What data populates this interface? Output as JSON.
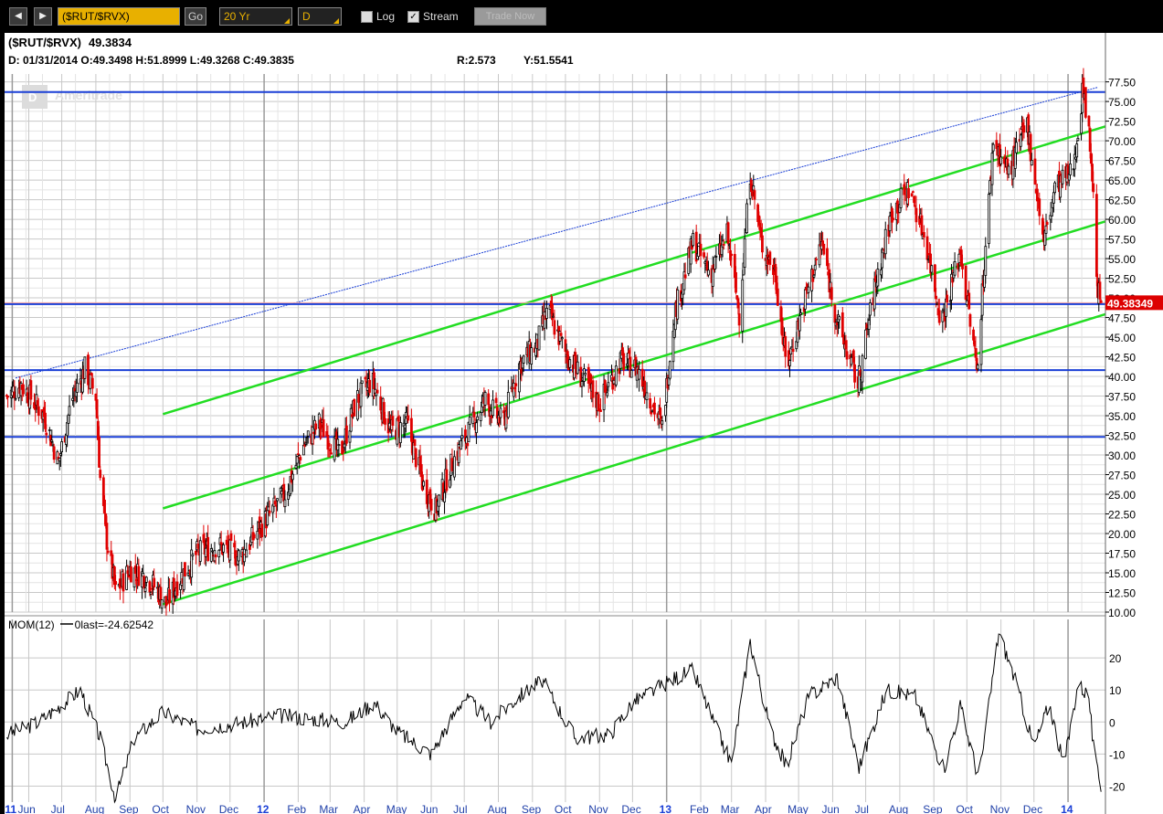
{
  "toolbar": {
    "back_label": "◀",
    "forward_label": "▶",
    "symbol_value": "($RUT/$RVX)",
    "go_label": "Go",
    "period_value": "20 Yr",
    "interval_value": "D",
    "log_label": "Log",
    "stream_label": "Stream",
    "trade_now_label": "Trade Now",
    "log_checked": false,
    "stream_checked": true
  },
  "header": {
    "title": "($RUT/$RVX)",
    "last_value": "49.3834",
    "ohlc_line": "D: 01/31/2014 O:49.3498 H:51.8999 L:49.3268 C:49.3835",
    "r_text": "R:2.573",
    "y_text": "Y:51.5541"
  },
  "watermark": "Ameritrade",
  "colors": {
    "up": "#000000",
    "down": "#e00000",
    "support_resistance": "#1a3fd6",
    "channel": "#22dd22",
    "price_label_bg": "#dd0000",
    "plot_bg": "#ffffff",
    "grid": "#c8c8c8"
  },
  "chart_data": [
    {
      "type": "candlestick",
      "ylim": [
        10,
        78.5
      ],
      "y_ticks": [
        "77.50",
        "75.00",
        "72.50",
        "70.00",
        "67.50",
        "65.00",
        "62.50",
        "60.00",
        "57.50",
        "55.00",
        "52.50",
        "50.00",
        "47.50",
        "45.00",
        "42.50",
        "40.00",
        "37.50",
        "35.00",
        "32.50",
        "30.00",
        "27.50",
        "25.00",
        "22.50",
        "20.00",
        "17.50",
        "15.00",
        "12.50",
        "10.00"
      ],
      "current_price_label": "49.38349",
      "current_price": 49.3835,
      "horizontal_lines": [
        76.2,
        49.2,
        40.8,
        32.3
      ],
      "channel_lines": [
        {
          "from": [
            "2011-10-01",
            35.2
          ],
          "to": [
            "2014-02-15",
            72.3
          ]
        },
        {
          "from": [
            "2011-10-01",
            23.2
          ],
          "to": [
            "2014-02-15",
            60.2
          ]
        },
        {
          "from": [
            "2011-10-01",
            11.0
          ],
          "to": [
            "2014-02-15",
            48.4
          ]
        }
      ],
      "trend_line": {
        "from": [
          "2011-05-20",
          39.8
        ],
        "to": [
          "2014-01-28",
          76.8
        ]
      },
      "close_path": [
        [
          "2011-05-12",
          37.5
        ],
        [
          "2011-05-25",
          39.0
        ],
        [
          "2011-06-15",
          35.0
        ],
        [
          "2011-06-28",
          29.0
        ],
        [
          "2011-07-10",
          37.0
        ],
        [
          "2011-07-22",
          41.0
        ],
        [
          "2011-08-01",
          37.5
        ],
        [
          "2011-08-05",
          27.0
        ],
        [
          "2011-08-10",
          20.0
        ],
        [
          "2011-08-19",
          12.5
        ],
        [
          "2011-09-01",
          15.5
        ],
        [
          "2011-09-15",
          14.5
        ],
        [
          "2011-09-25",
          13.0
        ],
        [
          "2011-10-04",
          11.0
        ],
        [
          "2011-10-15",
          14.0
        ],
        [
          "2011-11-01",
          17.5
        ],
        [
          "2011-11-20",
          18.5
        ],
        [
          "2011-12-10",
          17.0
        ],
        [
          "2012-01-01",
          21.5
        ],
        [
          "2012-01-20",
          25.0
        ],
        [
          "2012-02-05",
          31.0
        ],
        [
          "2012-02-20",
          34.0
        ],
        [
          "2012-03-10",
          30.0
        ],
        [
          "2012-03-25",
          37.0
        ],
        [
          "2012-04-08",
          39.5
        ],
        [
          "2012-04-25",
          33.0
        ],
        [
          "2012-05-10",
          34.0
        ],
        [
          "2012-05-25",
          26.0
        ],
        [
          "2012-06-05",
          23.0
        ],
        [
          "2012-06-20",
          29.0
        ],
        [
          "2012-07-05",
          33.0
        ],
        [
          "2012-07-20",
          37.0
        ],
        [
          "2012-08-05",
          34.0
        ],
        [
          "2012-08-20",
          41.5
        ],
        [
          "2012-09-05",
          44.0
        ],
        [
          "2012-09-15",
          48.5
        ],
        [
          "2012-10-01",
          43.0
        ],
        [
          "2012-10-15",
          40.0
        ],
        [
          "2012-11-01",
          36.5
        ],
        [
          "2012-11-20",
          42.0
        ],
        [
          "2012-12-05",
          41.0
        ],
        [
          "2012-12-28",
          33.5
        ],
        [
          "2013-01-08",
          48.0
        ],
        [
          "2013-01-25",
          57.0
        ],
        [
          "2013-02-10",
          53.0
        ],
        [
          "2013-02-25",
          58.0
        ],
        [
          "2013-03-08",
          48.0
        ],
        [
          "2013-03-18",
          66.0
        ],
        [
          "2013-03-28",
          57.0
        ],
        [
          "2013-04-10",
          53.0
        ],
        [
          "2013-04-20",
          41.0
        ],
        [
          "2013-05-05",
          49.0
        ],
        [
          "2013-05-22",
          57.0
        ],
        [
          "2013-06-05",
          47.0
        ],
        [
          "2013-06-24",
          39.0
        ],
        [
          "2013-07-10",
          52.0
        ],
        [
          "2013-07-25",
          61.0
        ],
        [
          "2013-08-10",
          64.0
        ],
        [
          "2013-08-25",
          57.0
        ],
        [
          "2013-09-08",
          47.0
        ],
        [
          "2013-09-25",
          56.0
        ],
        [
          "2013-10-10",
          41.0
        ],
        [
          "2013-10-25",
          70.0
        ],
        [
          "2013-11-08",
          66.0
        ],
        [
          "2013-11-25",
          72.0
        ],
        [
          "2013-12-10",
          57.0
        ],
        [
          "2013-12-20",
          64.0
        ],
        [
          "2014-01-05",
          66.0
        ],
        [
          "2014-01-15",
          77.0
        ],
        [
          "2014-01-22",
          68.0
        ],
        [
          "2014-01-28",
          51.0
        ],
        [
          "2014-01-31",
          49.4
        ]
      ]
    },
    {
      "type": "line",
      "indicator_label": "MOM(12)",
      "last_label": "last=-24.62542",
      "zero_label": "0",
      "ylim": [
        -25,
        32
      ],
      "y_ticks": [
        "20",
        "10",
        "0",
        "-10",
        "-20"
      ],
      "tick_values": [
        20,
        10,
        0,
        -10,
        -20
      ],
      "path": [
        [
          "2011-05-12",
          -4
        ],
        [
          "2011-06-10",
          0
        ],
        [
          "2011-07-18",
          10
        ],
        [
          "2011-08-05",
          -5
        ],
        [
          "2011-08-19",
          -24
        ],
        [
          "2011-09-05",
          -5
        ],
        [
          "2011-10-01",
          3
        ],
        [
          "2011-11-01",
          -2
        ],
        [
          "2011-12-15",
          0
        ],
        [
          "2012-01-15",
          2
        ],
        [
          "2012-02-15",
          1
        ],
        [
          "2012-03-15",
          0
        ],
        [
          "2012-04-10",
          6
        ],
        [
          "2012-05-01",
          -3
        ],
        [
          "2012-06-01",
          -10
        ],
        [
          "2012-07-01",
          8
        ],
        [
          "2012-07-25",
          0
        ],
        [
          "2012-08-20",
          8
        ],
        [
          "2012-09-10",
          13
        ],
        [
          "2012-10-10",
          -5
        ],
        [
          "2012-11-10",
          -4
        ],
        [
          "2012-12-01",
          6
        ],
        [
          "2013-01-10",
          14
        ],
        [
          "2013-01-25",
          16
        ],
        [
          "2013-02-15",
          -2
        ],
        [
          "2013-03-01",
          -13
        ],
        [
          "2013-03-18",
          25
        ],
        [
          "2013-04-05",
          -2
        ],
        [
          "2013-04-20",
          -14
        ],
        [
          "2013-05-10",
          8
        ],
        [
          "2013-06-05",
          14
        ],
        [
          "2013-06-25",
          -14
        ],
        [
          "2013-07-20",
          10
        ],
        [
          "2013-08-15",
          8
        ],
        [
          "2013-09-10",
          -15
        ],
        [
          "2013-09-25",
          5
        ],
        [
          "2013-10-12",
          -18
        ],
        [
          "2013-10-30",
          28
        ],
        [
          "2013-11-15",
          12
        ],
        [
          "2013-12-01",
          -8
        ],
        [
          "2013-12-15",
          6
        ],
        [
          "2013-12-28",
          -14
        ],
        [
          "2014-01-10",
          12
        ],
        [
          "2014-01-20",
          8
        ],
        [
          "2014-01-25",
          -12
        ],
        [
          "2014-01-31",
          -20
        ]
      ]
    }
  ],
  "x_axis": {
    "start": "2011-05-10",
    "end": "2014-02-04",
    "labels": [
      {
        "date": "2011-05-17",
        "text": "11",
        "year": true
      },
      {
        "date": "2011-06-01",
        "text": "Jun"
      },
      {
        "date": "2011-07-01",
        "text": "Jul"
      },
      {
        "date": "2011-08-01",
        "text": "Aug"
      },
      {
        "date": "2011-09-01",
        "text": "Sep"
      },
      {
        "date": "2011-10-01",
        "text": "Oct"
      },
      {
        "date": "2011-11-01",
        "text": "Nov"
      },
      {
        "date": "2011-12-01",
        "text": "Dec"
      },
      {
        "date": "2012-01-01",
        "text": "12",
        "year": true
      },
      {
        "date": "2012-02-01",
        "text": "Feb"
      },
      {
        "date": "2012-03-01",
        "text": "Mar"
      },
      {
        "date": "2012-04-01",
        "text": "Apr"
      },
      {
        "date": "2012-05-01",
        "text": "May"
      },
      {
        "date": "2012-06-01",
        "text": "Jun"
      },
      {
        "date": "2012-07-01",
        "text": "Jul"
      },
      {
        "date": "2012-08-01",
        "text": "Aug"
      },
      {
        "date": "2012-09-01",
        "text": "Sep"
      },
      {
        "date": "2012-10-01",
        "text": "Oct"
      },
      {
        "date": "2012-11-01",
        "text": "Nov"
      },
      {
        "date": "2012-12-01",
        "text": "Dec"
      },
      {
        "date": "2013-01-01",
        "text": "13",
        "year": true
      },
      {
        "date": "2013-02-01",
        "text": "Feb"
      },
      {
        "date": "2013-03-01",
        "text": "Mar"
      },
      {
        "date": "2013-04-01",
        "text": "Apr"
      },
      {
        "date": "2013-05-01",
        "text": "May"
      },
      {
        "date": "2013-06-01",
        "text": "Jun"
      },
      {
        "date": "2013-07-01",
        "text": "Jul"
      },
      {
        "date": "2013-08-01",
        "text": "Aug"
      },
      {
        "date": "2013-09-01",
        "text": "Sep"
      },
      {
        "date": "2013-10-01",
        "text": "Oct"
      },
      {
        "date": "2013-11-01",
        "text": "Nov"
      },
      {
        "date": "2013-12-01",
        "text": "Dec"
      },
      {
        "date": "2014-01-01",
        "text": "14",
        "year": true
      }
    ]
  }
}
